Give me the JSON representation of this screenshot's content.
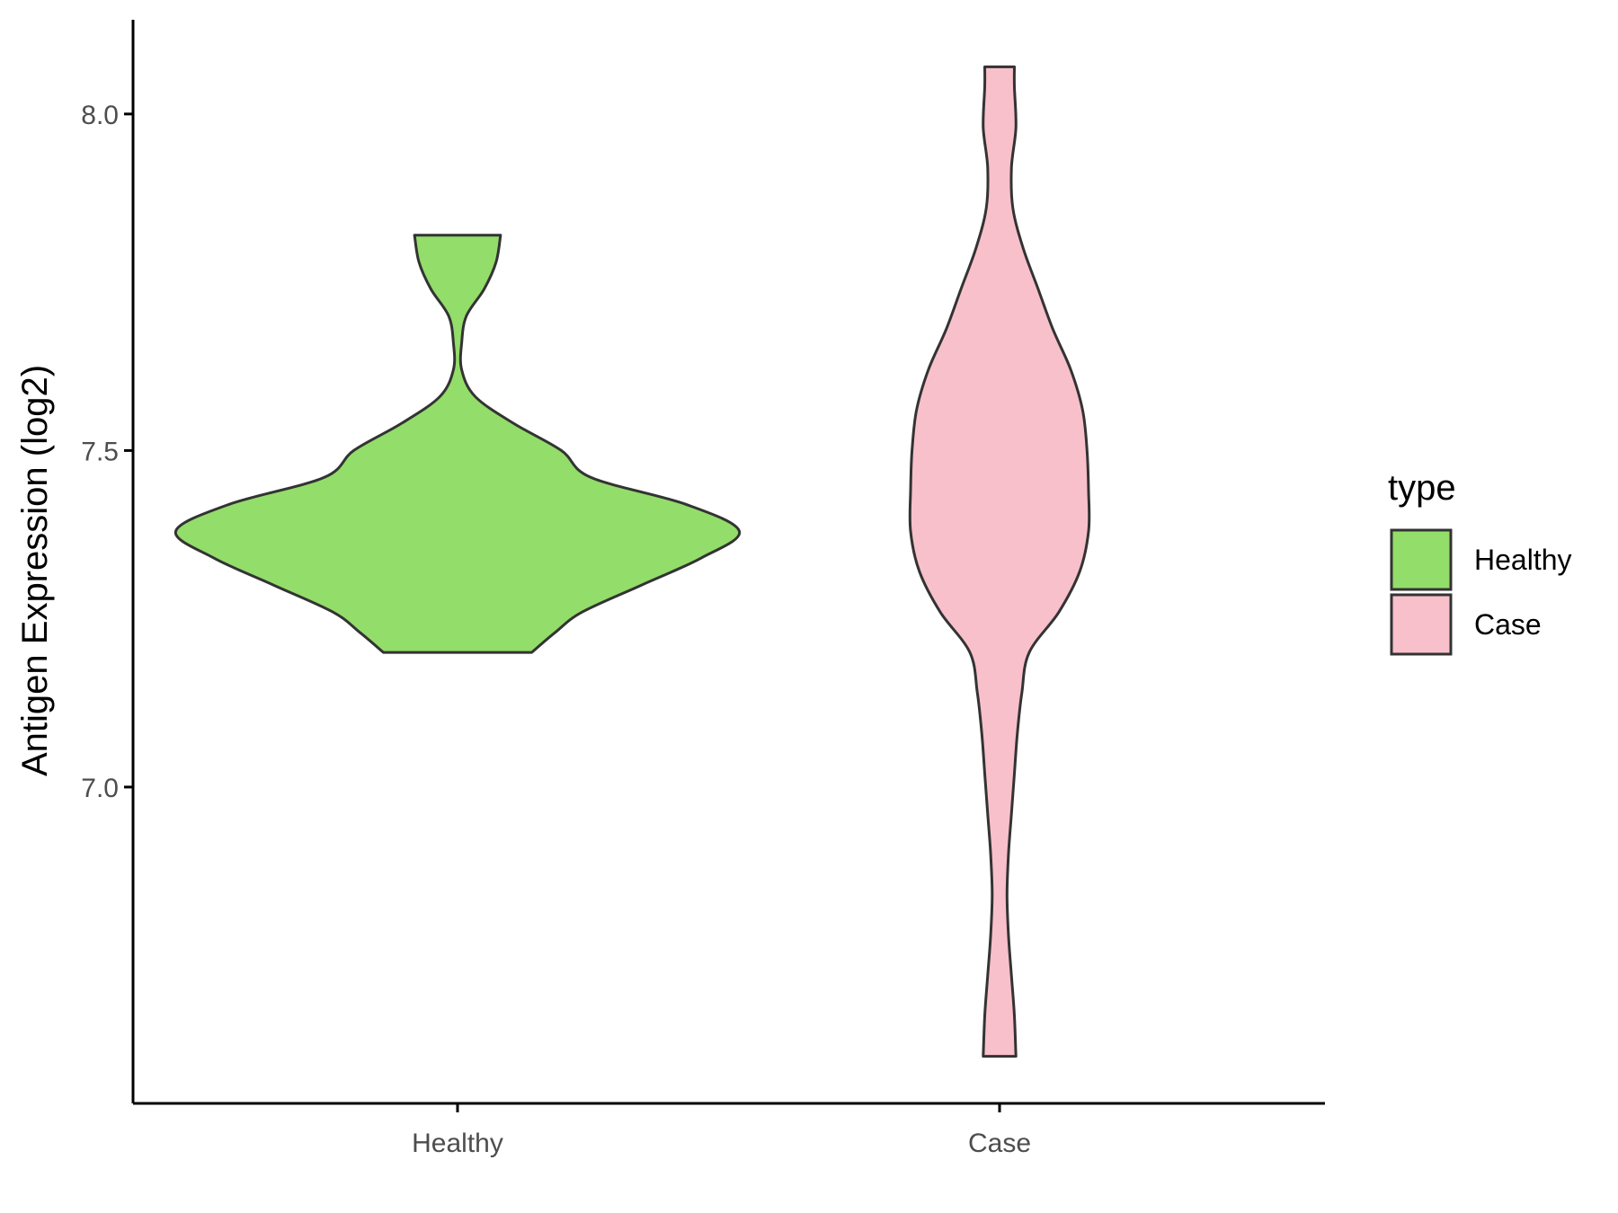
{
  "chart_data": {
    "type": "violin",
    "title": "",
    "xlabel": "",
    "ylabel": "Antigen Expression (log2)",
    "ylim": [
      6.53,
      8.14
    ],
    "yticks": [
      7.0,
      7.5,
      8.0
    ],
    "ytick_labels": [
      "7.0",
      "7.5",
      "8.0"
    ],
    "categories": [
      "Healthy",
      "Case"
    ],
    "grid": false,
    "legend": {
      "title": "type",
      "position": "right",
      "entries": [
        "Healthy",
        "Case"
      ]
    },
    "series": [
      {
        "name": "Healthy",
        "color": "#93DD6A",
        "y_min": 7.2,
        "y_max": 7.82,
        "profile": [
          [
            7.2,
            0.25
          ],
          [
            7.23,
            0.33
          ],
          [
            7.26,
            0.42
          ],
          [
            7.3,
            0.62
          ],
          [
            7.34,
            0.82
          ],
          [
            7.38,
            0.95
          ],
          [
            7.42,
            0.77
          ],
          [
            7.46,
            0.45
          ],
          [
            7.5,
            0.35
          ],
          [
            7.54,
            0.19
          ],
          [
            7.58,
            0.06
          ],
          [
            7.62,
            0.014
          ],
          [
            7.66,
            0.014
          ],
          [
            7.7,
            0.03
          ],
          [
            7.74,
            0.09
          ],
          [
            7.78,
            0.13
          ],
          [
            7.82,
            0.145
          ]
        ]
      },
      {
        "name": "Case",
        "color": "#F8C0CB",
        "y_min": 6.6,
        "y_max": 8.07,
        "profile": [
          [
            6.6,
            0.055
          ],
          [
            6.66,
            0.05
          ],
          [
            6.72,
            0.04
          ],
          [
            6.78,
            0.03
          ],
          [
            6.84,
            0.025
          ],
          [
            6.9,
            0.03
          ],
          [
            6.96,
            0.04
          ],
          [
            7.02,
            0.05
          ],
          [
            7.08,
            0.06
          ],
          [
            7.14,
            0.075
          ],
          [
            7.2,
            0.1
          ],
          [
            7.26,
            0.2
          ],
          [
            7.32,
            0.27
          ],
          [
            7.38,
            0.3
          ],
          [
            7.44,
            0.3
          ],
          [
            7.5,
            0.295
          ],
          [
            7.56,
            0.28
          ],
          [
            7.62,
            0.24
          ],
          [
            7.68,
            0.18
          ],
          [
            7.74,
            0.13
          ],
          [
            7.8,
            0.08
          ],
          [
            7.86,
            0.045
          ],
          [
            7.92,
            0.04
          ],
          [
            7.98,
            0.055
          ],
          [
            8.04,
            0.05
          ],
          [
            8.07,
            0.05
          ]
        ]
      }
    ]
  }
}
